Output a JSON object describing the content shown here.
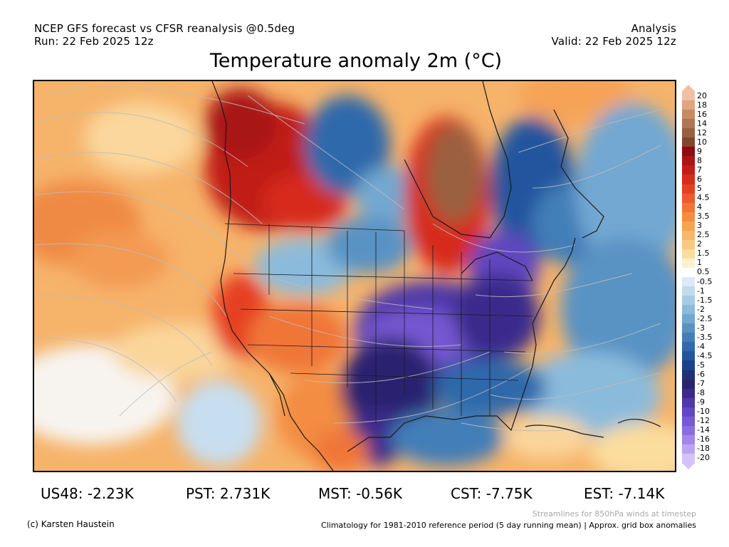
{
  "header": {
    "line1_left": "NCEP GFS forecast vs CFSR reanalysis @0.5deg",
    "line2_left": "Run: 22 Feb 2025 12z",
    "line1_right": "Analysis",
    "line2_right": "Valid: 22 Feb 2025 12z"
  },
  "title": "Temperature anomaly 2m (°C)",
  "colorbar": {
    "labels": [
      "20",
      "18",
      "16",
      "14",
      "12",
      "10",
      "9",
      "8",
      "7",
      "6",
      "5",
      "4.5",
      "4",
      "3.5",
      "3",
      "2.5",
      "2",
      "1.5",
      "1",
      "0.5",
      "-0.5",
      "-1",
      "-1.5",
      "-2",
      "-2.5",
      "-3",
      "-3.5",
      "-4",
      "-4.5",
      "-5",
      "-6",
      "-7",
      "-8",
      "-9",
      "-10",
      "-12",
      "-14",
      "-16",
      "-18",
      "-20"
    ],
    "colors": [
      "#f1c0a4",
      "#e3a47f",
      "#c98a62",
      "#b17553",
      "#9a6040",
      "#84472c",
      "#8e0c10",
      "#a91614",
      "#c11e17",
      "#d72c1b",
      "#e64022",
      "#ec5a2f",
      "#f07637",
      "#f38d42",
      "#f6a356",
      "#f8b769",
      "#fac97f",
      "#fbdd9e",
      "#fdf0cd",
      "#ffffff",
      "#dceaf5",
      "#c2dcee",
      "#a6cce5",
      "#8bbbdb",
      "#72a8d1",
      "#5993c4",
      "#427eb8",
      "#2f69ab",
      "#22559e",
      "#1a418c",
      "#213079",
      "#2c2370",
      "#3b2a8c",
      "#4e38a8",
      "#6147c0",
      "#7558d2",
      "#8b6ddf",
      "#a386ea",
      "#bda4f3",
      "#d5c2fa"
    ]
  },
  "stats": {
    "us48": "US48: -2.23K",
    "pst": "PST: 2.731K",
    "mst": "MST: -0.56K",
    "cst": "CST: -7.75K",
    "est": "EST: -7.14K"
  },
  "footer": {
    "credit": "(c) Karsten Haustein",
    "streamlines": "Streamlines for 850hPa winds at timestep",
    "climatology": "Climatology for 1981-2010 reference period (5 day running mean) | Approx. grid box anomalies"
  }
}
